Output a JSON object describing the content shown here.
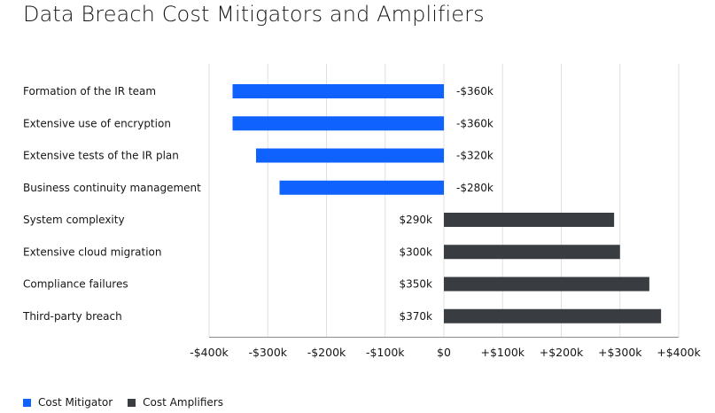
{
  "chart_data": {
    "type": "bar",
    "orientation": "horizontal",
    "title": "Data Breach Cost Mitigators and Amplifiers",
    "categories": [
      "Formation of the IR team",
      "Extensive use of encryption",
      "Extensive tests of the IR plan",
      "Business continuity management",
      "System complexity",
      "Extensive cloud migration",
      "Compliance failures",
      "Third-party breach"
    ],
    "values": [
      -360,
      -360,
      -320,
      -280,
      290,
      300,
      350,
      370
    ],
    "value_labels": [
      "-$360k",
      "-$360k",
      "-$320k",
      "-$280k",
      "$290k",
      "$300k",
      "$350k",
      "$370k"
    ],
    "units": "thousands USD",
    "xlim": [
      -400,
      400
    ],
    "x_ticks": [
      -400,
      -300,
      -200,
      -100,
      0,
      100,
      200,
      300,
      400
    ],
    "x_tick_labels": [
      "-$400k",
      "-$300k",
      "-$200k",
      "-$100k",
      "$0",
      "+$100k",
      "+$200k",
      "+$300k",
      "+$400k"
    ],
    "grid": "vertical",
    "series": [
      {
        "name": "Cost Mitigator",
        "color": "#0f62fe",
        "category_indices": [
          0,
          1,
          2,
          3
        ]
      },
      {
        "name": "Cost Amplifiers",
        "color": "#393c41",
        "category_indices": [
          4,
          5,
          6,
          7
        ]
      }
    ],
    "legend_position": "bottom-left"
  }
}
